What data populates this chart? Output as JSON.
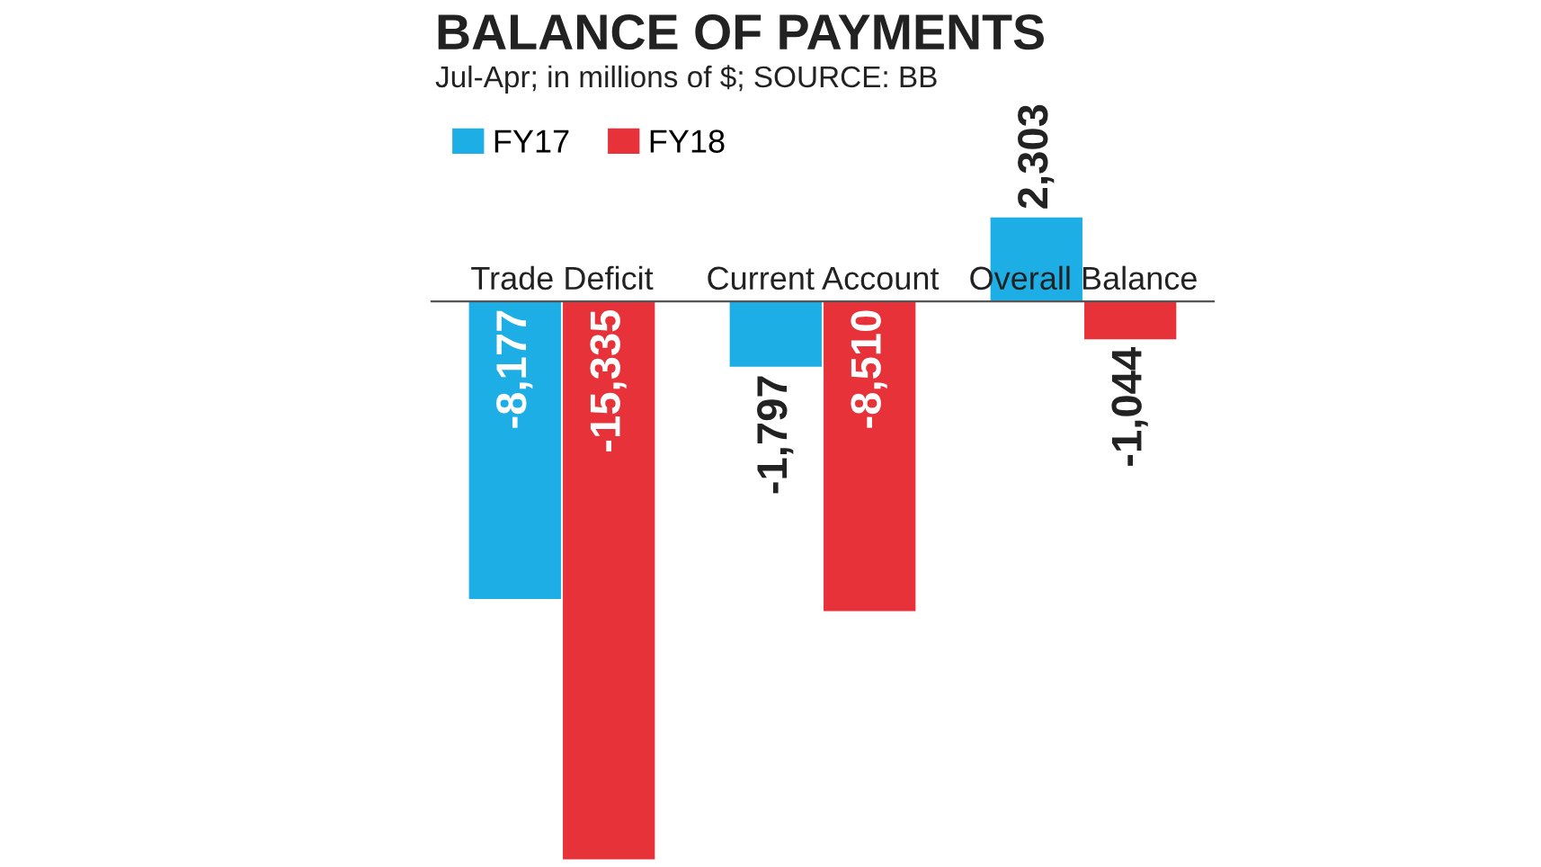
{
  "chart_data": {
    "type": "bar",
    "title": "BALANCE OF PAYMENTS",
    "subtitle": "Jul-Apr; in millions of $; SOURCE: BB",
    "categories": [
      "Trade Deficit",
      "Current Account",
      "Overall Balance"
    ],
    "series": [
      {
        "name": "FY17",
        "color": "#1eaee6",
        "values": [
          -8177,
          -1797,
          2303
        ],
        "value_labels": [
          "-8,177",
          "-1,797",
          "2,303"
        ]
      },
      {
        "name": "FY18",
        "color": "#e8323a",
        "values": [
          -15335,
          -8510,
          -1044
        ],
        "value_labels": [
          "-15,335",
          "-8,510",
          "-1,044"
        ]
      }
    ],
    "legend": "top left"
  }
}
